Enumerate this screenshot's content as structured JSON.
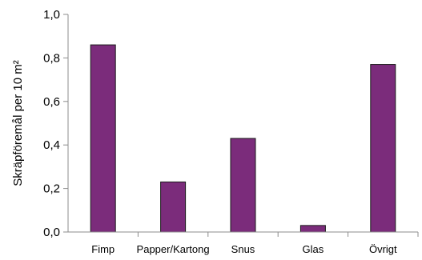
{
  "chart_data": {
    "type": "bar",
    "categories": [
      "Fimp",
      "Papper/Kartong",
      "Snus",
      "Glas",
      "Övrigt"
    ],
    "values": [
      0.86,
      0.23,
      0.43,
      0.03,
      0.77
    ],
    "title": "",
    "xlabel": "",
    "ylabel": "Skräpföremål per 10 m²",
    "ylim": [
      0,
      1.0
    ],
    "yticks": [
      "0,0",
      "0,2",
      "0,4",
      "0,6",
      "0,8",
      "1,0"
    ],
    "bar_color": "#7B2C7B",
    "grid": false,
    "legend": "none"
  }
}
